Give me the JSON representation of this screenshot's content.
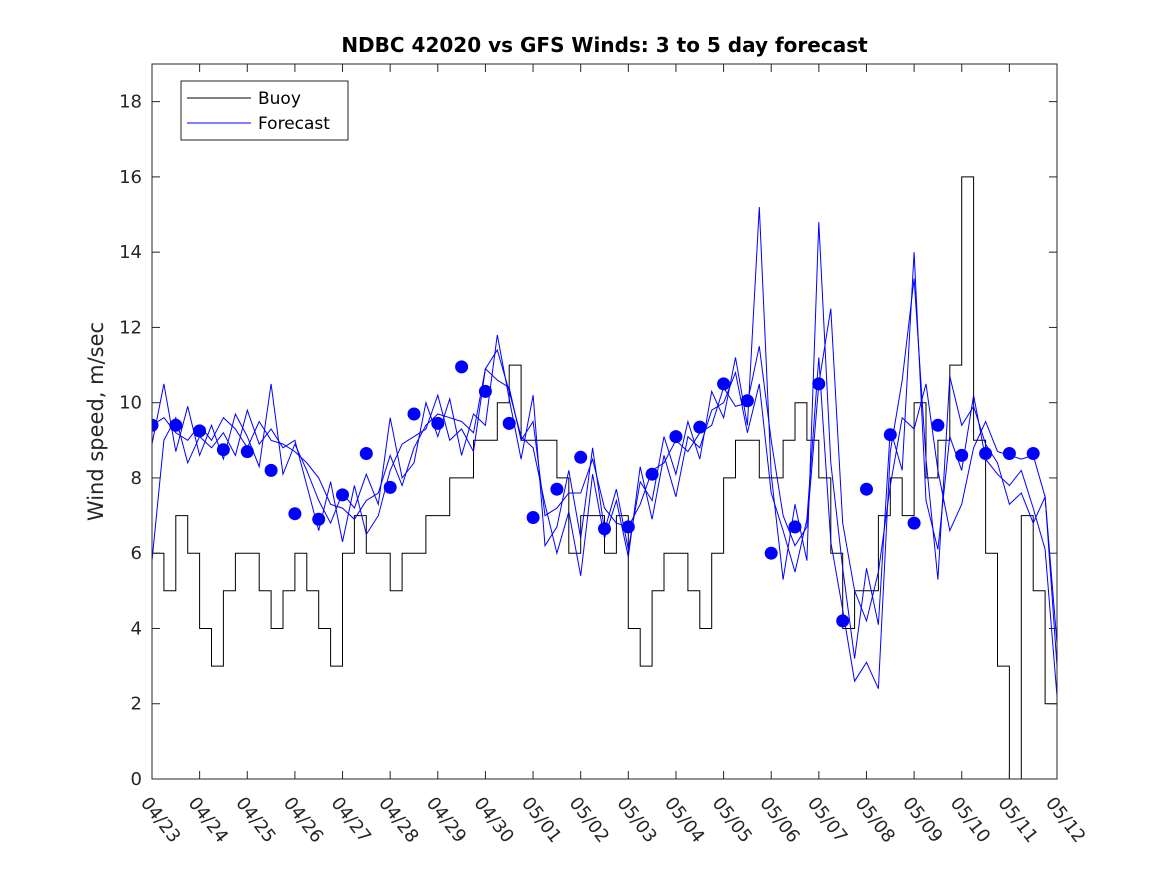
{
  "chart_data": {
    "type": "line",
    "title": "NDBC 42020 vs GFS Winds: 3 to 5 day forecast",
    "xlabel": "",
    "ylabel": "Wind speed, m/sec",
    "ylim": [
      0,
      19
    ],
    "yticks": [
      0,
      2,
      4,
      6,
      8,
      10,
      12,
      14,
      16,
      18
    ],
    "xlim": [
      "04/23",
      "05/12"
    ],
    "xticks": [
      "04/23",
      "04/24",
      "04/25",
      "04/26",
      "04/27",
      "04/28",
      "04/29",
      "04/30",
      "05/01",
      "05/02",
      "05/03",
      "05/04",
      "05/05",
      "05/06",
      "05/07",
      "05/08",
      "05/09",
      "05/10",
      "05/11",
      "05/12"
    ],
    "grid": false,
    "legend": {
      "position": "top-left",
      "entries": [
        "Buoy",
        "Forecast"
      ]
    },
    "colors": {
      "buoy": "#000000",
      "forecast": "#0000ff",
      "markers": "#0000ff"
    },
    "series": [
      {
        "name": "Buoy",
        "step": true,
        "x": [
          "04/23 00:00",
          "04/23 06:00",
          "04/23 12:00",
          "04/23 18:00",
          "04/24 00:00",
          "04/24 06:00",
          "04/24 12:00",
          "04/24 18:00",
          "04/25 00:00",
          "04/25 06:00",
          "04/25 12:00",
          "04/25 18:00",
          "04/26 00:00",
          "04/26 06:00",
          "04/26 12:00",
          "04/26 18:00",
          "04/27 00:00",
          "04/27 06:00",
          "04/27 12:00",
          "04/27 18:00",
          "04/28 00:00",
          "04/28 06:00",
          "04/28 12:00",
          "04/28 18:00",
          "04/29 00:00",
          "04/29 06:00",
          "04/29 12:00",
          "04/29 18:00",
          "04/30 00:00",
          "04/30 06:00",
          "04/30 12:00",
          "04/30 18:00",
          "05/01 00:00",
          "05/01 06:00",
          "05/01 12:00",
          "05/01 18:00",
          "05/02 00:00",
          "05/02 06:00",
          "05/02 12:00",
          "05/02 18:00",
          "05/03 00:00",
          "05/03 06:00",
          "05/03 12:00",
          "05/03 18:00",
          "05/04 00:00",
          "05/04 06:00",
          "05/04 12:00",
          "05/04 18:00",
          "05/05 00:00",
          "05/05 06:00",
          "05/05 12:00",
          "05/05 18:00",
          "05/06 00:00",
          "05/06 06:00",
          "05/06 12:00",
          "05/06 18:00",
          "05/07 00:00",
          "05/07 06:00",
          "05/07 12:00",
          "05/07 18:00",
          "05/08 00:00",
          "05/08 06:00",
          "05/08 12:00",
          "05/08 18:00",
          "05/09 00:00",
          "05/09 06:00",
          "05/09 12:00",
          "05/09 18:00",
          "05/10 00:00",
          "05/10 06:00",
          "05/10 12:00",
          "05/10 18:00",
          "05/11 00:00",
          "05/11 06:00",
          "05/11 12:00",
          "05/11 18:00",
          "05/12 00:00"
        ],
        "values": [
          6,
          5,
          7,
          6,
          4,
          3,
          5,
          6,
          6,
          5,
          4,
          5,
          6,
          5,
          4,
          3,
          6,
          7,
          6,
          6,
          5,
          6,
          6,
          7,
          7,
          8,
          8,
          9,
          9,
          10,
          11,
          9,
          9,
          9,
          8,
          6,
          7,
          7,
          6,
          7,
          4,
          3,
          5,
          6,
          6,
          5,
          4,
          6,
          8,
          9,
          9,
          8,
          8,
          9,
          10,
          9,
          8,
          6,
          4,
          5,
          5,
          7,
          8,
          7,
          10,
          8,
          9,
          11,
          16,
          9,
          6,
          3,
          0,
          7,
          5,
          2,
          1
        ]
      },
      {
        "name": "Forecast",
        "x": [
          "04/23 00:00",
          "04/23 06:00",
          "04/23 12:00",
          "04/23 18:00",
          "04/24 00:00",
          "04/24 06:00",
          "04/24 12:00",
          "04/24 18:00",
          "04/25 00:00",
          "04/25 06:00",
          "04/25 12:00",
          "04/25 18:00",
          "04/26 00:00",
          "04/26 06:00",
          "04/26 12:00",
          "04/26 18:00",
          "04/27 00:00",
          "04/27 06:00",
          "04/27 12:00",
          "04/27 18:00",
          "04/28 00:00",
          "04/28 06:00",
          "04/28 12:00",
          "04/28 18:00",
          "04/29 00:00",
          "04/29 06:00",
          "04/29 12:00",
          "04/29 18:00",
          "04/30 00:00",
          "04/30 06:00",
          "04/30 12:00",
          "04/30 18:00",
          "05/01 00:00",
          "05/01 06:00",
          "05/01 12:00",
          "05/01 18:00",
          "05/02 00:00",
          "05/02 06:00",
          "05/02 12:00",
          "05/02 18:00",
          "05/03 00:00",
          "05/03 06:00",
          "05/03 12:00",
          "05/03 18:00",
          "05/04 00:00",
          "05/04 06:00",
          "05/04 12:00",
          "05/04 18:00",
          "05/05 00:00",
          "05/05 06:00",
          "05/05 12:00",
          "05/05 18:00",
          "05/06 00:00",
          "05/06 06:00",
          "05/06 12:00",
          "05/06 18:00",
          "05/07 00:00",
          "05/07 06:00",
          "05/07 12:00",
          "05/07 18:00",
          "05/08 00:00",
          "05/08 06:00",
          "05/08 12:00",
          "05/08 18:00",
          "05/09 00:00",
          "05/09 06:00",
          "05/09 12:00",
          "05/09 18:00",
          "05/10 00:00",
          "05/10 06:00",
          "05/10 12:00",
          "05/10 18:00",
          "05/11 00:00",
          "05/11 06:00",
          "05/11 12:00",
          "05/11 18:00",
          "05/12 00:00"
        ],
        "values": [
          9.4,
          9.6,
          9.2,
          9.0,
          9.4,
          9.0,
          9.6,
          9.3,
          8.8,
          9.5,
          9.0,
          8.9,
          8.7,
          8.4,
          8.0,
          7.3,
          7.2,
          6.9,
          7.4,
          7.6,
          8.6,
          7.8,
          8.8,
          9.4,
          9.7,
          9.6,
          9.5,
          9.2,
          10.9,
          10.6,
          10.4,
          9.0,
          9.5,
          7.0,
          7.2,
          7.6,
          7.6,
          8.5,
          7.2,
          6.8,
          6.7,
          7.3,
          8.2,
          8.4,
          9.0,
          8.7,
          9.2,
          9.4,
          10.4,
          9.9,
          10.0,
          11.5,
          9.0,
          7.0,
          6.2,
          6.7,
          10.5,
          12.5,
          6.8,
          5.0,
          4.2,
          5.5,
          7.8,
          9.6,
          9.3,
          10.5,
          8.2,
          6.6,
          7.3,
          8.8,
          9.5,
          8.7,
          8.6,
          8.5,
          8.6,
          7.5,
          3.0
        ]
      },
      {
        "name": "Forecast",
        "x": [
          "04/23 00:00",
          "04/23 06:00",
          "04/23 12:00",
          "04/23 18:00",
          "04/24 00:00",
          "04/24 06:00",
          "04/24 12:00",
          "04/24 18:00",
          "04/25 00:00",
          "04/25 06:00",
          "04/25 12:00",
          "04/25 18:00",
          "04/26 00:00",
          "04/26 06:00",
          "04/26 12:00",
          "04/26 18:00",
          "04/27 00:00",
          "04/27 06:00",
          "04/27 12:00",
          "04/27 18:00",
          "04/28 00:00",
          "04/28 06:00",
          "04/28 12:00",
          "04/28 18:00",
          "04/29 00:00",
          "04/29 06:00",
          "04/29 12:00",
          "04/29 18:00",
          "04/30 00:00",
          "04/30 06:00",
          "04/30 12:00",
          "04/30 18:00",
          "05/01 00:00",
          "05/01 06:00",
          "05/01 12:00",
          "05/01 18:00",
          "05/02 00:00",
          "05/02 06:00",
          "05/02 12:00",
          "05/02 18:00",
          "05/03 00:00",
          "05/03 06:00",
          "05/03 12:00",
          "05/03 18:00",
          "05/04 00:00",
          "05/04 06:00",
          "05/04 12:00",
          "05/04 18:00",
          "05/05 00:00",
          "05/05 06:00",
          "05/05 12:00",
          "05/05 18:00",
          "05/06 00:00",
          "05/06 06:00",
          "05/06 12:00",
          "05/06 18:00",
          "05/07 00:00",
          "05/07 06:00",
          "05/07 12:00",
          "05/07 18:00",
          "05/08 00:00",
          "05/08 06:00",
          "05/08 12:00",
          "05/08 18:00",
          "05/09 00:00",
          "05/09 06:00",
          "05/09 12:00",
          "05/09 18:00",
          "05/10 00:00",
          "05/10 06:00",
          "05/10 12:00",
          "05/10 18:00",
          "05/11 00:00",
          "05/11 06:00",
          "05/11 12:00",
          "05/11 18:00",
          "05/12 00:00"
        ],
        "values": [
          8.9,
          10.5,
          8.7,
          9.9,
          8.6,
          9.4,
          8.5,
          9.7,
          9.1,
          8.3,
          10.5,
          8.1,
          8.9,
          8.2,
          7.4,
          6.8,
          7.6,
          7.2,
          8.1,
          7.3,
          9.6,
          8.0,
          8.4,
          10.0,
          9.1,
          10.1,
          8.6,
          9.7,
          9.4,
          11.8,
          10.1,
          8.5,
          10.2,
          6.2,
          6.7,
          8.2,
          6.4,
          8.8,
          6.6,
          7.7,
          6.1,
          7.9,
          7.4,
          9.1,
          8.1,
          9.5,
          8.5,
          10.3,
          9.6,
          11.2,
          9.4,
          15.2,
          8.1,
          5.3,
          7.3,
          5.8,
          14.8,
          8.4,
          5.6,
          3.2,
          5.6,
          4.1,
          9.3,
          8.2,
          14.0,
          7.4,
          6.1,
          9.1,
          8.2,
          10.2,
          8.5,
          8.1,
          7.8,
          8.2,
          7.2,
          6.1,
          2.2
        ]
      },
      {
        "name": "Forecast",
        "x": [
          "04/23 00:00",
          "04/23 06:00",
          "04/23 12:00",
          "04/23 18:00",
          "04/24 00:00",
          "04/24 06:00",
          "04/24 12:00",
          "04/24 18:00",
          "04/25 00:00",
          "04/25 06:00",
          "04/25 12:00",
          "04/25 18:00",
          "04/26 00:00",
          "04/26 06:00",
          "04/26 12:00",
          "04/26 18:00",
          "04/27 00:00",
          "04/27 06:00",
          "04/27 12:00",
          "04/27 18:00",
          "04/28 00:00",
          "04/28 06:00",
          "04/28 12:00",
          "04/28 18:00",
          "04/29 00:00",
          "04/29 06:00",
          "04/29 12:00",
          "04/29 18:00",
          "04/30 00:00",
          "04/30 06:00",
          "04/30 12:00",
          "04/30 18:00",
          "05/01 00:00",
          "05/01 06:00",
          "05/01 12:00",
          "05/01 18:00",
          "05/02 00:00",
          "05/02 06:00",
          "05/02 12:00",
          "05/02 18:00",
          "05/03 00:00",
          "05/03 06:00",
          "05/03 12:00",
          "05/03 18:00",
          "05/04 00:00",
          "05/04 06:00",
          "05/04 12:00",
          "05/04 18:00",
          "05/05 00:00",
          "05/05 06:00",
          "05/05 12:00",
          "05/05 18:00",
          "05/06 00:00",
          "05/06 06:00",
          "05/06 12:00",
          "05/06 18:00",
          "05/07 00:00",
          "05/07 06:00",
          "05/07 12:00",
          "05/07 18:00",
          "05/08 00:00",
          "05/08 06:00",
          "05/08 12:00",
          "05/08 18:00",
          "05/09 00:00",
          "05/09 06:00",
          "05/09 12:00",
          "05/09 18:00",
          "05/10 00:00",
          "05/10 06:00",
          "05/10 12:00",
          "05/10 18:00",
          "05/11 00:00",
          "05/11 06:00",
          "05/11 12:00",
          "05/11 18:00",
          "05/12 00:00"
        ],
        "values": [
          5.8,
          9.0,
          9.6,
          8.4,
          9.1,
          8.8,
          9.2,
          8.6,
          9.8,
          8.9,
          9.3,
          8.8,
          9.0,
          7.8,
          6.6,
          7.9,
          6.3,
          7.8,
          6.5,
          7.0,
          8.2,
          8.9,
          9.1,
          9.3,
          10.2,
          9.0,
          9.3,
          8.7,
          10.9,
          11.4,
          10.3,
          9.1,
          8.8,
          7.3,
          6.0,
          7.1,
          5.4,
          8.1,
          6.4,
          7.4,
          5.9,
          8.3,
          6.9,
          8.6,
          7.5,
          9.1,
          8.8,
          9.8,
          10.0,
          10.8,
          9.2,
          10.5,
          7.6,
          6.6,
          5.5,
          6.9,
          11.2,
          6.3,
          4.5,
          2.6,
          3.1,
          2.4,
          8.7,
          10.6,
          13.3,
          8.5,
          5.3,
          10.7,
          9.4,
          9.9,
          8.9,
          8.4,
          7.3,
          7.6,
          6.8,
          7.5,
          3.6
        ]
      }
    ],
    "markers": {
      "name": "Forecast",
      "x": [
        "04/23 00:00",
        "04/23 12:00",
        "04/24 00:00",
        "04/24 12:00",
        "04/25 00:00",
        "04/25 12:00",
        "04/26 00:00",
        "04/26 12:00",
        "04/27 00:00",
        "04/27 12:00",
        "04/28 00:00",
        "04/28 12:00",
        "04/29 00:00",
        "04/29 12:00",
        "04/30 00:00",
        "04/30 12:00",
        "05/01 00:00",
        "05/01 12:00",
        "05/02 00:00",
        "05/02 12:00",
        "05/03 00:00",
        "05/03 12:00",
        "05/04 00:00",
        "05/04 12:00",
        "05/05 00:00",
        "05/05 12:00",
        "05/06 00:00",
        "05/06 12:00",
        "05/07 00:00",
        "05/07 12:00",
        "05/08 00:00",
        "05/08 12:00",
        "05/09 00:00",
        "05/09 12:00",
        "05/10 00:00",
        "05/10 12:00",
        "05/11 00:00",
        "05/11 12:00"
      ],
      "values": [
        9.4,
        9.4,
        9.25,
        8.75,
        8.7,
        8.2,
        7.05,
        6.9,
        7.55,
        8.65,
        7.75,
        9.7,
        9.45,
        10.95,
        10.3,
        9.45,
        6.95,
        7.7,
        8.55,
        6.65,
        6.7,
        8.1,
        9.1,
        9.35,
        10.5,
        10.05,
        6.0,
        6.7,
        10.5,
        4.2,
        7.7,
        9.15,
        6.8,
        9.4,
        8.6,
        8.65,
        8.65,
        8.65
      ]
    }
  }
}
